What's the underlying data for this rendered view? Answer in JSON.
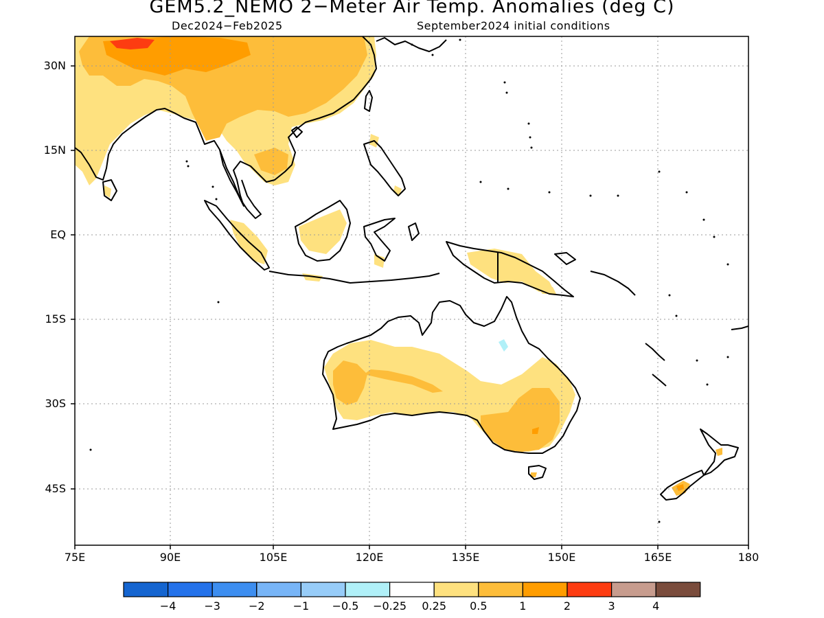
{
  "title": "GEM5.2_NEMO 2−Meter Air Temp. Anomalies (deg C)",
  "subtitle_left": "Dec2024−Feb2025",
  "subtitle_right": "September2024 initial conditions",
  "lat_labels": [
    "30N",
    "15N",
    "EQ",
    "15S",
    "30S",
    "45S"
  ],
  "lon_labels": [
    "75E",
    "90E",
    "105E",
    "120E",
    "135E",
    "150E",
    "165E",
    "180"
  ],
  "colorbar": {
    "colors": [
      "#1565d0",
      "#2472ea",
      "#3d8ef0",
      "#78b5f7",
      "#97ccf8",
      "#b0f0f8",
      "#ffffff",
      "#fee17f",
      "#fdbd3a",
      "#ff9d00",
      "#fd3c11",
      "#c79c8e",
      "#7a4c3c"
    ],
    "labels": [
      "−4",
      "−3",
      "−2",
      "−1",
      "−0.5",
      "−0.25",
      "0.25",
      "0.5",
      "1",
      "2",
      "3",
      "4"
    ]
  },
  "map": {
    "extent": {
      "lon": [
        75,
        180
      ],
      "lat": [
        -55,
        35
      ]
    },
    "land_color": "#ffffff",
    "coastline_color": "#000000"
  }
}
